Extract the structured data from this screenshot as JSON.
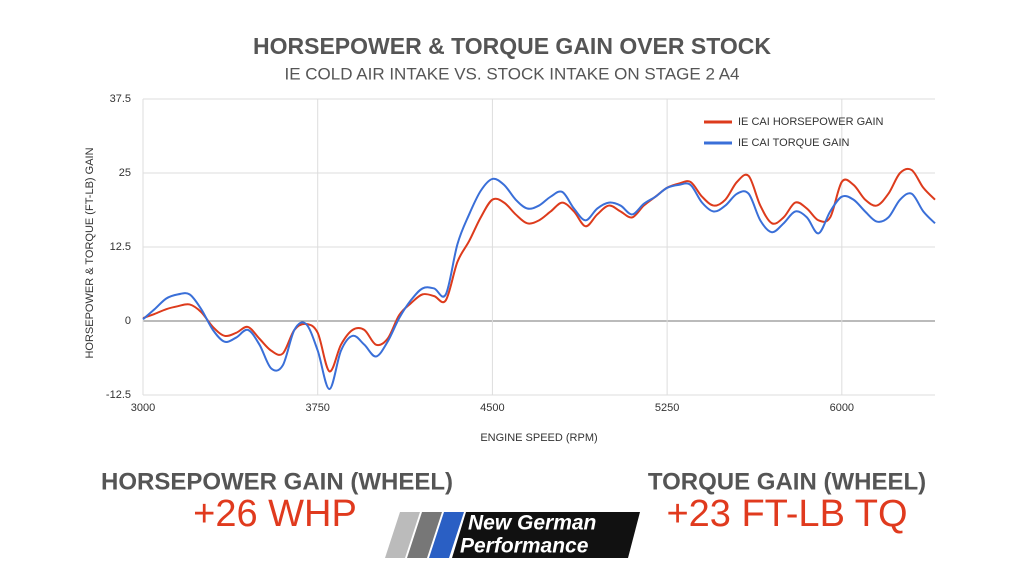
{
  "chart_data": {
    "type": "line",
    "title": "HORSEPOWER & TORQUE GAIN OVER STOCK",
    "subtitle": "IE COLD AIR INTAKE VS. STOCK INTAKE ON STAGE 2 A4",
    "x_label": "ENGINE SPEED (RPM)",
    "y_label": "HORSEPOWER & TORQUE (FT-LB) GAIN",
    "x": [
      3000,
      3050,
      3100,
      3150,
      3200,
      3250,
      3300,
      3350,
      3400,
      3450,
      3500,
      3550,
      3600,
      3650,
      3700,
      3750,
      3800,
      3850,
      3900,
      3950,
      4000,
      4050,
      4100,
      4150,
      4200,
      4250,
      4300,
      4350,
      4400,
      4450,
      4500,
      4550,
      4600,
      4650,
      4700,
      4750,
      4800,
      4850,
      4900,
      4950,
      5000,
      5050,
      5100,
      5150,
      5200,
      5250,
      5300,
      5350,
      5400,
      5450,
      5500,
      5550,
      5600,
      5650,
      5700,
      5750,
      5800,
      5850,
      5900,
      5950,
      6000,
      6050,
      6100,
      6150,
      6200,
      6250,
      6300,
      6350,
      6400
    ],
    "series": [
      {
        "name": "IE CAI HORSEPOWER GAIN",
        "color": "#dd3b1c",
        "values": [
          0.5,
          1.2,
          2,
          2.5,
          2.8,
          1.5,
          -1,
          -2.5,
          -2,
          -1,
          -3,
          -5,
          -5.5,
          -1.5,
          -0.5,
          -2,
          -8.5,
          -4,
          -1.5,
          -1.5,
          -4,
          -3,
          1,
          3,
          4.5,
          4.2,
          3.5,
          10,
          13.5,
          17.5,
          20.5,
          20,
          18,
          16.5,
          17,
          18.5,
          20,
          18.5,
          16,
          18,
          19.5,
          18.5,
          17.5,
          19.5,
          21,
          22.5,
          23.2,
          23.5,
          21,
          19.5,
          20.5,
          23.5,
          24.5,
          19.5,
          16.5,
          17.5,
          20,
          19,
          17,
          17.5,
          23.5,
          23,
          20.5,
          19.5,
          21.5,
          25,
          25.5,
          22.5,
          20.5
        ]
      },
      {
        "name": "IE CAI TORQUE GAIN",
        "color": "#3a6fd8",
        "values": [
          0.3,
          2,
          3.8,
          4.5,
          4.5,
          2,
          -1.5,
          -3.5,
          -2.8,
          -1.5,
          -4,
          -8,
          -7.5,
          -1.5,
          -0.5,
          -5,
          -11.5,
          -5,
          -2.5,
          -4,
          -6,
          -3.5,
          0.5,
          3.5,
          5.5,
          5.5,
          4.5,
          13,
          18,
          22,
          24,
          23,
          20.5,
          19,
          19.5,
          21,
          21.8,
          19,
          17,
          19,
          20,
          19.5,
          18,
          19.8,
          21,
          22.5,
          23,
          23,
          20,
          18.5,
          19.5,
          21.5,
          21.5,
          17,
          15,
          16.5,
          18.5,
          17.5,
          14.8,
          18.5,
          21,
          20.5,
          18.5,
          16.8,
          17.5,
          20.5,
          21.5,
          18.5,
          16.5
        ]
      }
    ],
    "xlim": [
      3000,
      6400
    ],
    "xticks": [
      3000,
      3750,
      4500,
      5250,
      6000
    ],
    "ylim": [
      -12.5,
      37.5
    ],
    "yticks": [
      -12.5,
      0,
      12.5,
      25,
      37.5
    ],
    "grid": true,
    "legend": "top-right",
    "annotations": [
      "HORSEPOWER GAIN (WHEEL)",
      "+26 WHP",
      "TORQUE GAIN (WHEEL)",
      "+23 FT-LB TQ"
    ]
  },
  "logo": {
    "lines": [
      "New German",
      "Performance"
    ]
  }
}
